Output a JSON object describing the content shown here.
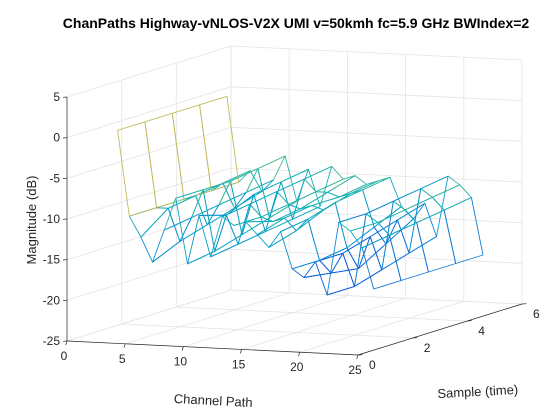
{
  "chart_data": {
    "type": "mesh3d",
    "title": "ChanPaths Highway-vNLOS-V2X UMI v=50kmh fc=5.9 GHz BWIndex=2",
    "xlabel": "Channel Path",
    "ylabel": "Sample (time)",
    "zlabel": "Magnitude (dB)",
    "xlim": [
      0,
      25
    ],
    "ylim": [
      0,
      6
    ],
    "zlim": [
      -25,
      5
    ],
    "xticks": [
      "0",
      "5",
      "10",
      "15",
      "20",
      "25"
    ],
    "yticks": [
      "0",
      "2",
      "4",
      "6"
    ],
    "zticks": [
      "-25",
      "-20",
      "-15",
      "-10",
      "-5",
      "0",
      "5"
    ],
    "grid": true,
    "colormap": "parula",
    "channel_path": [
      2,
      3,
      4,
      5,
      6,
      7,
      8,
      9,
      10,
      11,
      12,
      13,
      14,
      15,
      16,
      17,
      18,
      19,
      20,
      21,
      22,
      23,
      24
    ],
    "sample": [
      1,
      2,
      3,
      4,
      5
    ],
    "magnitude_db": [
      [
        0,
        0,
        0,
        0,
        0
      ],
      [
        -10.5,
        -10.5,
        -10.5,
        -10.5,
        -10.5
      ],
      [
        -13,
        -10.5,
        -10,
        -9.5,
        -9
      ],
      [
        -16,
        -14.5,
        -13.5,
        -12.5,
        -11.5
      ],
      [
        -12,
        -11.5,
        -11,
        -10.5,
        -10
      ],
      [
        -8,
        -8,
        -8,
        -7.5,
        -7
      ],
      [
        -16,
        -15.5,
        -14.5,
        -13.5,
        -12.5
      ],
      [
        -10,
        -11,
        -9.5,
        -9,
        -8.5
      ],
      [
        -15,
        -14.5,
        -14,
        -13.5,
        -13
      ],
      [
        -10,
        -9.5,
        -9,
        -8.5,
        -8
      ],
      [
        -11,
        -11,
        -10.5,
        -10,
        -9.5
      ],
      [
        -10.5,
        -11.5,
        -11,
        -10,
        -9
      ],
      [
        -12,
        -11,
        -10.5,
        -10.5,
        -10
      ],
      [
        -13.5,
        -12.5,
        -11,
        -10,
        -9.5
      ],
      [
        -11.5,
        -11,
        -10,
        -9.5,
        -9
      ],
      [
        -16,
        -16,
        -15.5,
        -14,
        -12.5
      ],
      [
        -17,
        -17.5,
        -18,
        -16,
        -14
      ],
      [
        -15,
        -15,
        -14,
        -13,
        -12
      ],
      [
        -19,
        -19,
        -18,
        -17,
        -16
      ],
      [
        -10,
        -10,
        -9.5,
        -9,
        -8.5
      ],
      [
        -11,
        -11,
        -10.5,
        -10,
        -9.5
      ],
      [
        -13,
        -12.5,
        -12,
        -11.5,
        -11
      ],
      [
        -18,
        -18,
        -18,
        -18,
        -18
      ]
    ]
  }
}
